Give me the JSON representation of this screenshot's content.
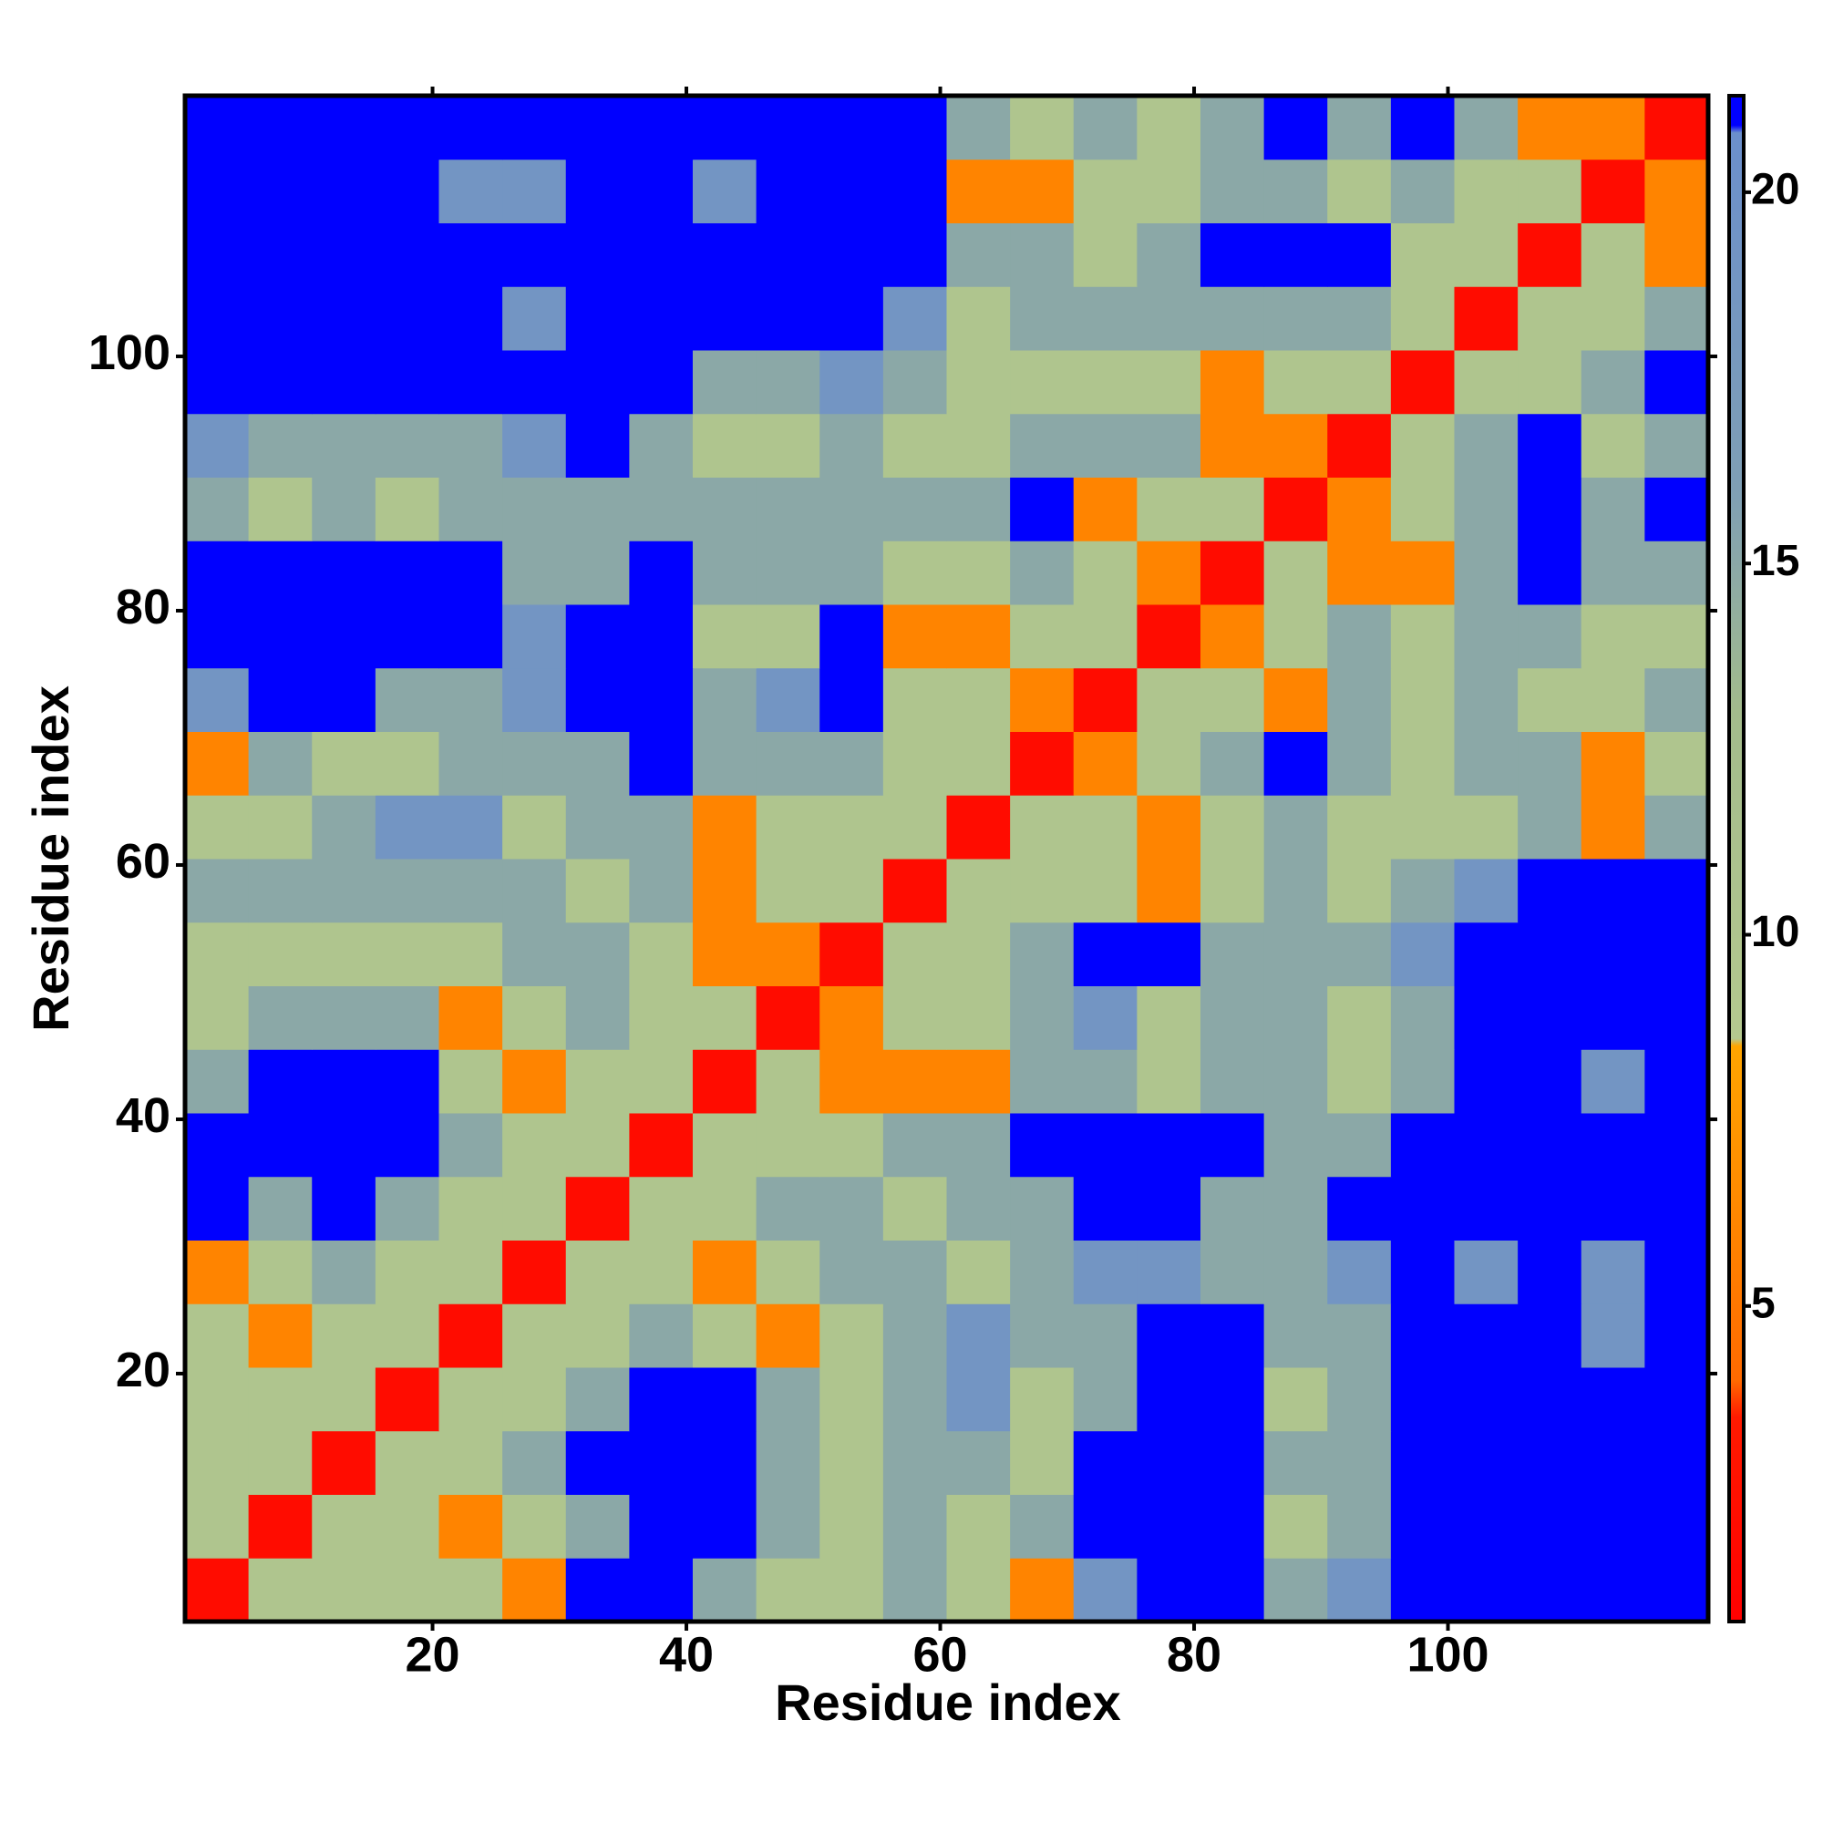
{
  "chart_data": {
    "type": "heatmap",
    "x_label": "Residue index",
    "y_label": "Residue index",
    "xlim": [
      0.5,
      120.5
    ],
    "ylim": [
      0.5,
      120.5
    ],
    "xticks": [
      20,
      40,
      60,
      80,
      100
    ],
    "yticks": [
      20,
      40,
      60,
      80,
      100
    ],
    "xbins": [
      0.5,
      5.5,
      10.5,
      15.5,
      20.5,
      25.5,
      30.5,
      35.5,
      40.5,
      45.5,
      50.5,
      55.5,
      60.5,
      65.5,
      70.5,
      75.5,
      80.5,
      85.5,
      90.5,
      95.5,
      100.5,
      105.5,
      110.5,
      115.5,
      120.5
    ],
    "ybins": [
      0.5,
      5.5,
      10.5,
      15.5,
      20.5,
      25.5,
      30.5,
      35.5,
      40.5,
      45.5,
      50.5,
      55.5,
      60.5,
      65.5,
      70.5,
      75.5,
      80.5,
      85.5,
      90.5,
      95.5,
      100.5,
      105.5,
      110.5,
      115.5,
      120.5
    ],
    "z": [
      [
        2,
        10,
        10,
        10,
        10,
        6,
        21,
        21,
        15,
        10,
        10,
        15,
        10,
        6,
        19,
        21,
        21,
        15,
        19,
        21,
        21,
        21,
        21,
        21
      ],
      [
        10,
        2,
        10,
        10,
        6,
        10,
        15,
        21,
        21,
        15,
        10,
        15,
        10,
        15,
        21,
        21,
        21,
        10,
        15,
        21,
        21,
        21,
        21,
        21
      ],
      [
        10,
        10,
        2,
        10,
        10,
        15,
        21,
        21,
        21,
        15,
        10,
        15,
        15,
        10,
        21,
        21,
        21,
        15,
        15,
        21,
        21,
        21,
        21,
        21
      ],
      [
        10,
        10,
        10,
        2,
        10,
        10,
        15,
        21,
        21,
        15,
        10,
        15,
        19,
        10,
        15,
        21,
        21,
        10,
        15,
        21,
        21,
        21,
        21,
        21
      ],
      [
        10,
        6,
        10,
        10,
        2,
        10,
        10,
        15,
        10,
        6,
        10,
        15,
        19,
        15,
        15,
        21,
        21,
        15,
        15,
        21,
        21,
        21,
        19,
        21
      ],
      [
        6,
        10,
        15,
        10,
        10,
        2,
        10,
        10,
        6,
        10,
        15,
        15,
        10,
        15,
        19,
        19,
        15,
        15,
        19,
        21,
        19,
        21,
        19,
        21
      ],
      [
        21,
        15,
        21,
        15,
        10,
        10,
        2,
        10,
        10,
        15,
        15,
        10,
        15,
        15,
        21,
        21,
        15,
        15,
        21,
        21,
        21,
        21,
        21,
        21
      ],
      [
        21,
        21,
        21,
        21,
        15,
        10,
        10,
        2,
        10,
        10,
        10,
        15,
        15,
        21,
        21,
        21,
        21,
        15,
        15,
        21,
        21,
        21,
        21,
        21
      ],
      [
        15,
        21,
        21,
        21,
        10,
        6,
        10,
        10,
        2,
        10,
        6,
        6,
        6,
        15,
        15,
        10,
        15,
        15,
        10,
        15,
        21,
        21,
        19,
        21
      ],
      [
        10,
        15,
        15,
        15,
        6,
        10,
        15,
        10,
        10,
        2,
        6,
        10,
        10,
        15,
        19,
        10,
        15,
        15,
        10,
        15,
        21,
        21,
        21,
        21
      ],
      [
        10,
        10,
        10,
        10,
        10,
        15,
        15,
        10,
        6,
        6,
        2,
        10,
        10,
        15,
        21,
        21,
        15,
        15,
        15,
        19,
        21,
        21,
        21,
        21
      ],
      [
        15,
        15,
        15,
        15,
        15,
        15,
        10,
        15,
        6,
        10,
        10,
        2,
        10,
        10,
        10,
        6,
        10,
        15,
        10,
        15,
        19,
        21,
        21,
        21
      ],
      [
        10,
        10,
        15,
        19,
        19,
        10,
        15,
        15,
        6,
        10,
        10,
        10,
        2,
        10,
        10,
        6,
        10,
        15,
        10,
        10,
        10,
        15,
        6,
        15
      ],
      [
        6,
        15,
        10,
        10,
        15,
        15,
        15,
        21,
        15,
        15,
        15,
        10,
        10,
        2,
        6,
        10,
        15,
        21,
        15,
        10,
        15,
        15,
        6,
        10
      ],
      [
        19,
        21,
        21,
        15,
        15,
        19,
        21,
        21,
        15,
        19,
        21,
        10,
        10,
        6,
        2,
        10,
        10,
        6,
        15,
        10,
        15,
        10,
        10,
        15
      ],
      [
        21,
        21,
        21,
        21,
        21,
        19,
        21,
        21,
        10,
        10,
        21,
        6,
        6,
        10,
        10,
        2,
        6,
        10,
        15,
        10,
        15,
        15,
        10,
        10
      ],
      [
        21,
        21,
        21,
        21,
        21,
        15,
        15,
        21,
        15,
        15,
        15,
        10,
        10,
        15,
        10,
        6,
        2,
        10,
        6,
        6,
        15,
        21,
        15,
        15
      ],
      [
        15,
        10,
        15,
        10,
        15,
        15,
        15,
        15,
        15,
        15,
        15,
        15,
        15,
        21,
        6,
        10,
        10,
        2,
        6,
        10,
        15,
        21,
        15,
        21
      ],
      [
        19,
        15,
        15,
        15,
        15,
        19,
        21,
        15,
        10,
        10,
        15,
        10,
        10,
        15,
        15,
        15,
        6,
        6,
        2,
        10,
        15,
        21,
        10,
        15
      ],
      [
        21,
        21,
        21,
        21,
        21,
        21,
        21,
        21,
        15,
        15,
        19,
        15,
        10,
        10,
        10,
        10,
        6,
        10,
        10,
        2,
        10,
        10,
        15,
        21
      ],
      [
        21,
        21,
        21,
        21,
        21,
        19,
        21,
        21,
        21,
        21,
        21,
        19,
        10,
        15,
        15,
        15,
        15,
        15,
        15,
        10,
        2,
        10,
        10,
        15
      ],
      [
        21,
        21,
        21,
        21,
        21,
        21,
        21,
        21,
        21,
        21,
        21,
        21,
        15,
        15,
        10,
        15,
        21,
        21,
        21,
        10,
        10,
        2,
        10,
        6
      ],
      [
        21,
        21,
        21,
        21,
        19,
        19,
        21,
        21,
        19,
        21,
        21,
        21,
        6,
        6,
        10,
        10,
        15,
        15,
        10,
        15,
        10,
        10,
        2,
        6
      ],
      [
        21,
        21,
        21,
        21,
        21,
        21,
        21,
        21,
        21,
        21,
        21,
        21,
        15,
        10,
        15,
        10,
        15,
        21,
        15,
        21,
        15,
        6,
        6,
        2
      ]
    ],
    "zlim": [
      0.75,
      21.3
    ],
    "zticks": [
      5,
      10,
      15,
      20
    ],
    "colorscale": [
      [
        0.75,
        "#ff0000"
      ],
      [
        3.5,
        "#ff1a00"
      ],
      [
        4,
        "#ff6a00"
      ],
      [
        8.5,
        "#ffa500"
      ],
      [
        8.6,
        "#b5c98f"
      ],
      [
        13,
        "#a3bb8c"
      ],
      [
        16,
        "#7f9fb5"
      ],
      [
        20.8,
        "#6b8fcc"
      ],
      [
        20.9,
        "#0000ff"
      ],
      [
        21.3,
        "#0000ff"
      ]
    ]
  }
}
